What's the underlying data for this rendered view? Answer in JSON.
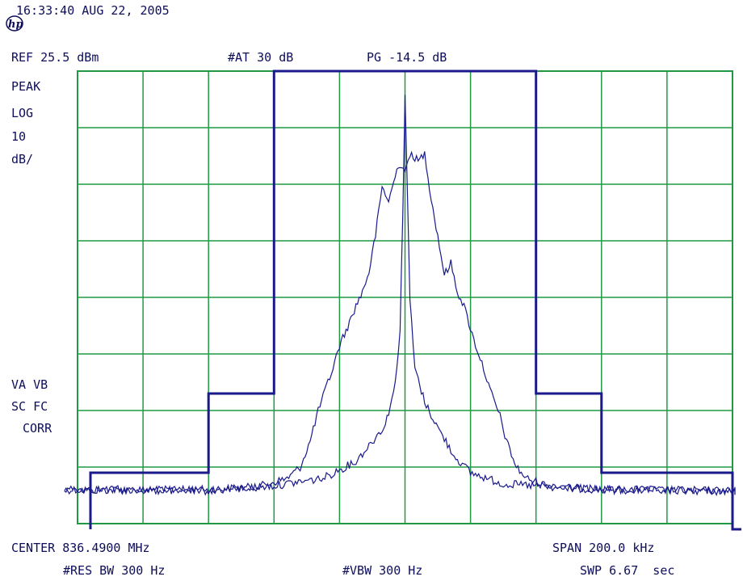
{
  "header": {
    "timestamp": "16:33:40 AUG 22, 2005",
    "reference": "REF 25.5 dBm",
    "attenuation": "#AT 30 dB",
    "pg": "PG -14.5 dB"
  },
  "left_panel": {
    "detector": "PEAK",
    "scale_type": "LOG",
    "scale_value": "10",
    "scale_unit": "dB/",
    "flags_line1": "VA VB",
    "flags_line2": "SC FC",
    "flags_line3": "CORR"
  },
  "footer": {
    "center": "CENTER 836.4900 MHz",
    "span": "SPAN 200.0 kHz",
    "res_bw": "#RES BW 300 Hz",
    "vbw": "#VBW 300 Hz",
    "sweep": "SWP 6.67  sec"
  },
  "colors": {
    "trace": "#1a1a8c",
    "grid": "#1f9a43",
    "text": "#0e0e5a"
  },
  "icons": {
    "logo": "hp-logo-icon"
  },
  "chart_data": {
    "type": "line",
    "grid": true,
    "x_divisions": 10,
    "y_divisions": 8,
    "xlim": [
      -100,
      100
    ],
    "ylim": [
      -54.5,
      25.5
    ],
    "limit_mask": [
      [
        -110,
        -55.5
      ],
      [
        -100,
        -55.5
      ],
      [
        -100,
        -45.5
      ],
      [
        -60,
        -45.5
      ],
      [
        -60,
        -31.5
      ],
      [
        -40,
        -31.5
      ],
      [
        -40,
        25.5
      ],
      [
        40,
        25.5
      ],
      [
        40,
        -31.5
      ],
      [
        60,
        -31.5
      ],
      [
        60,
        -45.5
      ],
      [
        100,
        -45.5
      ],
      [
        100,
        -55.5
      ],
      [
        110,
        -55.5
      ]
    ],
    "series": [
      {
        "values": [
          [
            -104,
            -48.5
          ],
          [
            -80,
            -48.6
          ],
          [
            -60,
            -48.5
          ],
          [
            -45,
            -48.0
          ],
          [
            -36,
            -46.5
          ],
          [
            -32,
            -44.5
          ],
          [
            -29,
            -40.0
          ],
          [
            -27,
            -35.5
          ],
          [
            -25,
            -32.0
          ],
          [
            -22,
            -27.0
          ],
          [
            -20,
            -23.0
          ],
          [
            -17,
            -19.0
          ],
          [
            -15,
            -16.0
          ],
          [
            -13,
            -13.5
          ],
          [
            -11,
            -10.0
          ],
          [
            -9,
            -3.5
          ],
          [
            -7,
            5.0
          ],
          [
            -5,
            2.5
          ],
          [
            -2,
            9.0
          ],
          [
            0,
            8.0
          ],
          [
            2,
            11.0
          ],
          [
            4,
            9.5
          ],
          [
            6,
            11.0
          ],
          [
            8,
            3.0
          ],
          [
            11,
            -7.0
          ],
          [
            12,
            -10.5
          ],
          [
            14,
            -8.5
          ],
          [
            16,
            -13.5
          ],
          [
            18,
            -16.0
          ],
          [
            21,
            -22.0
          ],
          [
            24,
            -27.0
          ],
          [
            26,
            -31.0
          ],
          [
            29,
            -35.5
          ],
          [
            31,
            -40.0
          ],
          [
            34,
            -44.5
          ],
          [
            37,
            -46.5
          ],
          [
            45,
            -48.0
          ],
          [
            60,
            -48.5
          ],
          [
            80,
            -48.6
          ],
          [
            104,
            -48.7
          ]
        ]
      },
      {
        "values": [
          [
            -104,
            -48.4
          ],
          [
            -60,
            -48.7
          ],
          [
            -40,
            -47.8
          ],
          [
            -25,
            -46.5
          ],
          [
            -15,
            -43.5
          ],
          [
            -10,
            -40.0
          ],
          [
            -6,
            -37.0
          ],
          [
            -3,
            -30.0
          ],
          [
            -1.5,
            -20.0
          ],
          [
            -0.7,
            0.0
          ],
          [
            0,
            21.0
          ],
          [
            0.7,
            5.0
          ],
          [
            1.5,
            -15.0
          ],
          [
            3,
            -27.0
          ],
          [
            6,
            -33.0
          ],
          [
            10,
            -37.5
          ],
          [
            15,
            -42.5
          ],
          [
            20,
            -45.5
          ],
          [
            30,
            -47.5
          ],
          [
            60,
            -48.5
          ],
          [
            104,
            -48.8
          ]
        ]
      }
    ]
  }
}
